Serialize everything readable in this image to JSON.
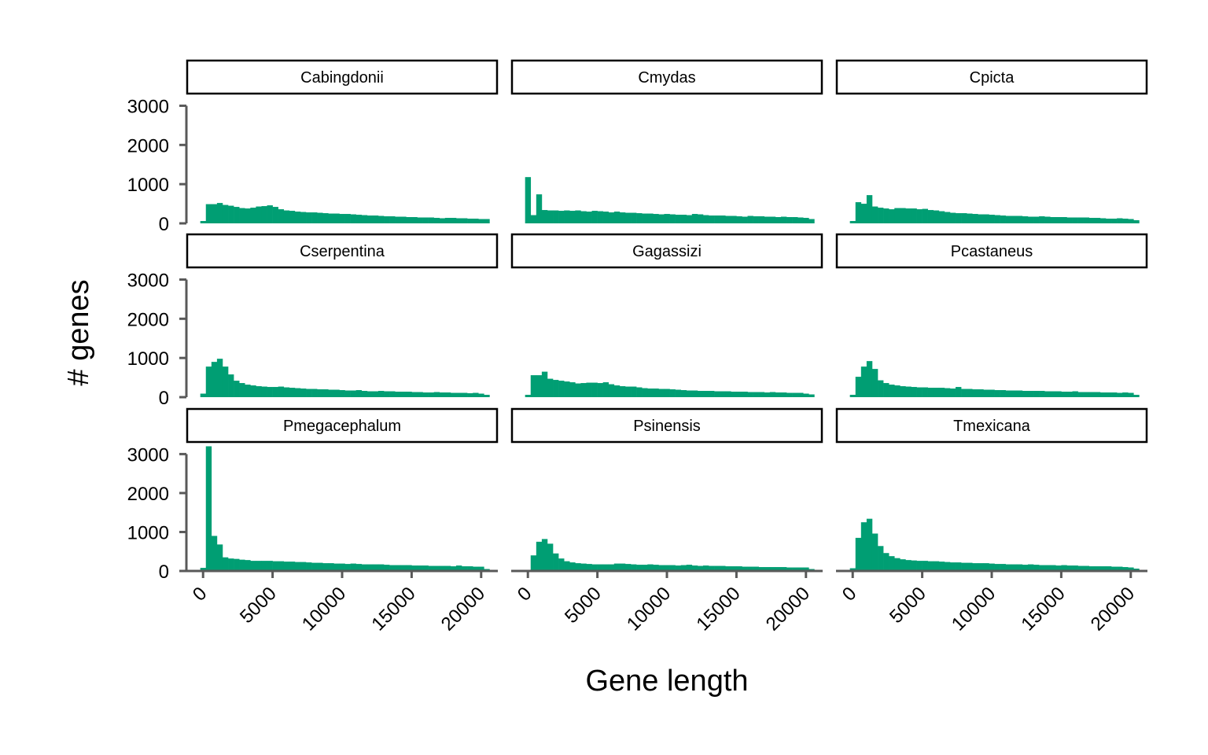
{
  "chart_data": {
    "type": "bar",
    "subtype": "faceted-histogram",
    "xlabel": "Gene length",
    "ylabel": "# genes",
    "xlim": [
      -1200,
      21200
    ],
    "ylim": [
      0,
      3250
    ],
    "x_ticks": [
      0,
      5000,
      10000,
      15000,
      20000
    ],
    "x_tick_labels": [
      "0",
      "5000",
      "10000",
      "15000",
      "20000"
    ],
    "y_ticks": [
      0,
      1000,
      2000,
      3000
    ],
    "y_tick_labels": [
      "0",
      "1000",
      "2000",
      "3000"
    ],
    "bar_color": "#009E73",
    "axis_color": "#595959",
    "layout": {
      "rows": 3,
      "cols": 3
    },
    "bin_start": 0,
    "bin_width": 400,
    "facets": [
      {
        "name": "Cabingdonii",
        "values": [
          60,
          490,
          490,
          520,
          470,
          450,
          420,
          390,
          380,
          400,
          430,
          440,
          460,
          420,
          360,
          330,
          320,
          300,
          290,
          280,
          280,
          270,
          260,
          250,
          250,
          240,
          240,
          230,
          220,
          210,
          200,
          200,
          190,
          180,
          180,
          170,
          170,
          160,
          160,
          150,
          150,
          150,
          140,
          130,
          140,
          140,
          130,
          130,
          120,
          120,
          110,
          110
        ]
      },
      {
        "name": "Cmydas",
        "values": [
          1180,
          210,
          740,
          340,
          330,
          330,
          320,
          330,
          320,
          330,
          310,
          300,
          320,
          310,
          300,
          280,
          300,
          280,
          270,
          270,
          260,
          250,
          250,
          240,
          230,
          240,
          230,
          220,
          220,
          210,
          240,
          230,
          210,
          200,
          200,
          200,
          190,
          190,
          180,
          170,
          190,
          180,
          180,
          170,
          170,
          160,
          170,
          160,
          160,
          150,
          140,
          110
        ]
      },
      {
        "name": "Cpicta",
        "values": [
          60,
          540,
          500,
          720,
          430,
          400,
          380,
          360,
          390,
          390,
          380,
          380,
          360,
          370,
          340,
          330,
          310,
          290,
          270,
          260,
          260,
          250,
          240,
          230,
          230,
          220,
          210,
          200,
          190,
          190,
          190,
          180,
          170,
          170,
          180,
          170,
          160,
          160,
          160,
          150,
          150,
          150,
          150,
          140,
          140,
          130,
          120,
          120,
          130,
          120,
          110,
          80
        ]
      },
      {
        "name": "Cserpentina",
        "values": [
          90,
          780,
          900,
          980,
          780,
          580,
          420,
          360,
          320,
          300,
          280,
          270,
          260,
          260,
          270,
          250,
          240,
          230,
          220,
          210,
          210,
          200,
          200,
          190,
          190,
          180,
          170,
          170,
          180,
          160,
          150,
          150,
          160,
          150,
          150,
          140,
          140,
          140,
          130,
          130,
          120,
          120,
          130,
          120,
          120,
          110,
          110,
          110,
          100,
          110,
          90,
          60
        ]
      },
      {
        "name": "Gagassizi",
        "values": [
          60,
          560,
          560,
          650,
          470,
          440,
          420,
          400,
          380,
          350,
          360,
          370,
          370,
          360,
          380,
          330,
          300,
          280,
          270,
          270,
          250,
          230,
          220,
          220,
          210,
          210,
          200,
          190,
          180,
          170,
          170,
          160,
          160,
          160,
          150,
          150,
          150,
          140,
          140,
          140,
          130,
          130,
          130,
          120,
          130,
          120,
          120,
          110,
          110,
          110,
          90,
          70
        ]
      },
      {
        "name": "Pcastaneus",
        "values": [
          60,
          520,
          780,
          920,
          720,
          430,
          360,
          320,
          300,
          280,
          270,
          260,
          250,
          250,
          240,
          240,
          240,
          230,
          220,
          260,
          210,
          210,
          200,
          200,
          190,
          190,
          180,
          180,
          170,
          170,
          170,
          160,
          160,
          160,
          160,
          150,
          150,
          150,
          140,
          140,
          150,
          130,
          130,
          130,
          130,
          120,
          120,
          120,
          110,
          120,
          110,
          60
        ]
      },
      {
        "name": "Pmegacephalum",
        "values": [
          80,
          3200,
          900,
          680,
          350,
          320,
          310,
          290,
          280,
          260,
          260,
          260,
          260,
          250,
          250,
          240,
          240,
          230,
          230,
          220,
          210,
          210,
          200,
          200,
          190,
          190,
          180,
          190,
          180,
          170,
          170,
          170,
          170,
          160,
          150,
          150,
          150,
          150,
          140,
          140,
          140,
          130,
          130,
          130,
          130,
          120,
          140,
          120,
          120,
          110,
          110,
          50
        ]
      },
      {
        "name": "Psinensis",
        "values": [
          30,
          400,
          750,
          820,
          700,
          450,
          320,
          250,
          220,
          200,
          190,
          180,
          170,
          170,
          170,
          170,
          190,
          190,
          180,
          170,
          160,
          160,
          170,
          160,
          150,
          150,
          150,
          140,
          150,
          160,
          140,
          130,
          140,
          130,
          130,
          130,
          120,
          120,
          120,
          110,
          110,
          110,
          100,
          100,
          100,
          100,
          100,
          90,
          90,
          90,
          90,
          50
        ]
      },
      {
        "name": "Tmexicana",
        "values": [
          70,
          850,
          1250,
          1340,
          960,
          640,
          460,
          380,
          330,
          300,
          280,
          270,
          260,
          260,
          250,
          250,
          240,
          230,
          220,
          220,
          210,
          210,
          200,
          200,
          200,
          190,
          180,
          180,
          170,
          170,
          170,
          160,
          170,
          160,
          150,
          150,
          150,
          140,
          150,
          140,
          140,
          130,
          130,
          120,
          120,
          120,
          120,
          110,
          110,
          100,
          90,
          60
        ]
      }
    ]
  }
}
